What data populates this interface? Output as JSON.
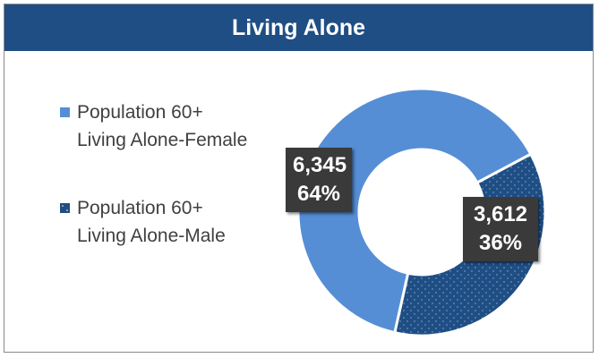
{
  "chart_data": {
    "type": "pie",
    "title": "Living Alone",
    "donut": true,
    "series": [
      {
        "name": "Population 60+ Living Alone-Female",
        "value": 6345,
        "percent": "64%",
        "value_label": "6,345",
        "color": "#558ed5",
        "pattern": "solid"
      },
      {
        "name": "Population 60+ Living Alone-Male",
        "value": 3612,
        "percent": "36%",
        "value_label": "3,612",
        "color": "#1f4e84",
        "pattern": "dotted"
      }
    ],
    "legend_position": "left"
  }
}
